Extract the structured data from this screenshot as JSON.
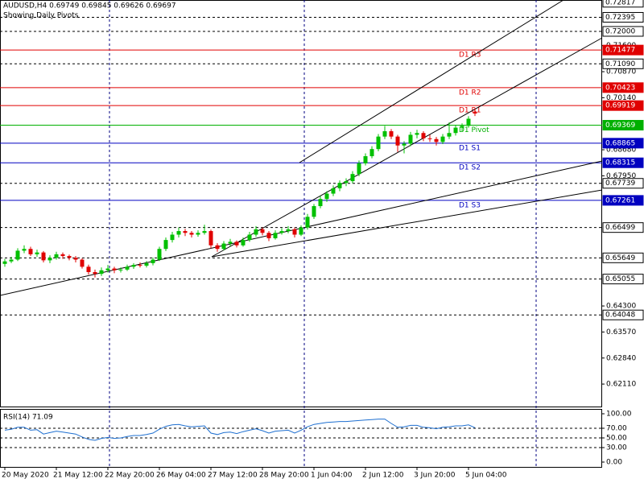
{
  "chart_data": {
    "type": "candlestick",
    "title": "AUDUSD,H4  0.69749 0.69845 0.69626 0.69697",
    "subtitle": "Showing Daily Pivots",
    "up_color": "#00c000",
    "down_color": "#e00000",
    "ylim": [
      0.6148,
      0.7288
    ],
    "yticks": [
      {
        "value": 0.716,
        "label": "0.71600"
      },
      {
        "value": 0.7087,
        "label": "0.70870"
      },
      {
        "value": 0.7014,
        "label": "0.70140"
      },
      {
        "value": 0.6868,
        "label": "0.68680"
      },
      {
        "value": 0.6795,
        "label": "0.67950"
      },
      {
        "value": 0.643,
        "label": "0.64300"
      },
      {
        "value": 0.6357,
        "label": "0.63570"
      },
      {
        "value": 0.6284,
        "label": "0.62840"
      },
      {
        "value": 0.6211,
        "label": "0.62110"
      }
    ],
    "levels": [
      {
        "value": 0.72817,
        "label": "0.72817",
        "color": "#000000",
        "line": "none"
      },
      {
        "value": 0.72395,
        "label": "0.72395",
        "color": "#000000",
        "line": "dashed"
      },
      {
        "value": 0.72,
        "label": "0.72000",
        "color": "#000000",
        "line": "dashed"
      },
      {
        "value": 0.71477,
        "label": "0.71477",
        "color": "#e00000",
        "line": "solid",
        "name": "D1 R3"
      },
      {
        "value": 0.7109,
        "label": "0.71090",
        "color": "#000000",
        "line": "dashed"
      },
      {
        "value": 0.70423,
        "label": "0.70423",
        "color": "#e00000",
        "line": "solid",
        "name": "D1 R2"
      },
      {
        "value": 0.69919,
        "label": "0.69919",
        "color": "#e00000",
        "line": "solid",
        "name": "D1 R1"
      },
      {
        "value": 0.69369,
        "label": "0.69369",
        "color": "#00b000",
        "line": "solid",
        "name": "D1 Pivot"
      },
      {
        "value": 0.68865,
        "label": "0.68865",
        "color": "#0000c0",
        "line": "solid",
        "name": "D1 S1"
      },
      {
        "value": 0.68315,
        "label": "0.68315",
        "color": "#0000c0",
        "line": "solid",
        "name": "D1 S2"
      },
      {
        "value": 0.67739,
        "label": "0.67739",
        "color": "#000000",
        "line": "dashed"
      },
      {
        "value": 0.67261,
        "label": "0.67261",
        "color": "#0000c0",
        "line": "solid",
        "name": "D1 S3"
      },
      {
        "value": 0.66499,
        "label": "0.66499",
        "color": "#000000",
        "line": "dashed"
      },
      {
        "value": 0.65649,
        "label": "0.65649",
        "color": "#000000",
        "line": "dashed"
      },
      {
        "value": 0.65055,
        "label": "0.65055",
        "color": "#000000",
        "line": "dashed"
      },
      {
        "value": 0.64048,
        "label": "0.64048",
        "color": "#000000",
        "line": "dashed"
      }
    ],
    "time_labels": [
      "20 May 2020",
      "21 May 12:00",
      "22 May 20:00",
      "26 May 04:00",
      "27 May 12:00",
      "28 May 20:00",
      "1 Jun 04:00",
      "2 Jun 12:00",
      "3 Jun 20:00",
      "5 Jun 04:00"
    ],
    "open": [
      0.6548,
      0.6555,
      0.656,
      0.6585,
      0.659,
      0.6575,
      0.658,
      0.6558,
      0.6565,
      0.6575,
      0.657,
      0.6565,
      0.656,
      0.654,
      0.6525,
      0.652,
      0.653,
      0.6535,
      0.653,
      0.6532,
      0.654,
      0.6545,
      0.6543,
      0.655,
      0.656,
      0.659,
      0.6615,
      0.663,
      0.664,
      0.6635,
      0.663,
      0.6635,
      0.664,
      0.66,
      0.659,
      0.6605,
      0.661,
      0.66,
      0.6615,
      0.663,
      0.6645,
      0.6635,
      0.662,
      0.6635,
      0.664,
      0.6645,
      0.663,
      0.665,
      0.668,
      0.671,
      0.673,
      0.6745,
      0.676,
      0.6775,
      0.678,
      0.68,
      0.683,
      0.685,
      0.687,
      0.6905,
      0.692,
      0.6905,
      0.688,
      0.6885,
      0.691,
      0.6915,
      0.69,
      0.6898,
      0.689,
      0.6905,
      0.6915,
      0.693,
      0.6935,
      0.69749
    ],
    "high": [
      0.6562,
      0.6568,
      0.6592,
      0.66,
      0.6596,
      0.6588,
      0.6584,
      0.6572,
      0.6582,
      0.658,
      0.6574,
      0.657,
      0.6564,
      0.6546,
      0.6532,
      0.6538,
      0.6545,
      0.654,
      0.6538,
      0.6546,
      0.655,
      0.6552,
      0.6556,
      0.6566,
      0.6596,
      0.6622,
      0.6638,
      0.665,
      0.6646,
      0.664,
      0.6642,
      0.6658,
      0.6644,
      0.6606,
      0.6612,
      0.6618,
      0.6614,
      0.6622,
      0.6638,
      0.6654,
      0.665,
      0.664,
      0.6642,
      0.6648,
      0.6654,
      0.665,
      0.6656,
      0.6688,
      0.6716,
      0.6738,
      0.6752,
      0.6768,
      0.6782,
      0.6788,
      0.6808,
      0.6838,
      0.6858,
      0.6878,
      0.6912,
      0.6935,
      0.6926,
      0.691,
      0.6892,
      0.6918,
      0.6924,
      0.692,
      0.691,
      0.6904,
      0.6912,
      0.6945,
      0.6936,
      0.6942,
      0.6962,
      0.69845
    ],
    "low": [
      0.654,
      0.655,
      0.6556,
      0.6578,
      0.657,
      0.6568,
      0.6552,
      0.655,
      0.656,
      0.6562,
      0.6558,
      0.6552,
      0.6535,
      0.6518,
      0.651,
      0.6514,
      0.6524,
      0.6522,
      0.6524,
      0.6528,
      0.6534,
      0.6538,
      0.6538,
      0.6544,
      0.6556,
      0.6584,
      0.6608,
      0.6622,
      0.6626,
      0.6622,
      0.6624,
      0.663,
      0.6592,
      0.6582,
      0.6586,
      0.6598,
      0.6594,
      0.6596,
      0.661,
      0.6624,
      0.6628,
      0.6612,
      0.6616,
      0.663,
      0.6634,
      0.6622,
      0.6626,
      0.6644,
      0.6674,
      0.6704,
      0.6722,
      0.6738,
      0.6752,
      0.6766,
      0.6774,
      0.6794,
      0.6824,
      0.6844,
      0.6864,
      0.6898,
      0.6898,
      0.6862,
      0.6858,
      0.6878,
      0.69,
      0.6892,
      0.689,
      0.688,
      0.6884,
      0.6898,
      0.6908,
      0.692,
      0.693,
      0.69626
    ],
    "close": [
      0.6555,
      0.656,
      0.6585,
      0.659,
      0.6575,
      0.658,
      0.6558,
      0.6565,
      0.6575,
      0.657,
      0.6565,
      0.656,
      0.654,
      0.6525,
      0.652,
      0.653,
      0.6535,
      0.653,
      0.6532,
      0.654,
      0.6545,
      0.6543,
      0.655,
      0.656,
      0.659,
      0.6615,
      0.663,
      0.664,
      0.6635,
      0.663,
      0.6635,
      0.664,
      0.66,
      0.659,
      0.6605,
      0.661,
      0.66,
      0.6615,
      0.663,
      0.6645,
      0.6635,
      0.662,
      0.6635,
      0.664,
      0.6645,
      0.663,
      0.665,
      0.668,
      0.671,
      0.673,
      0.6745,
      0.676,
      0.6775,
      0.678,
      0.68,
      0.683,
      0.685,
      0.687,
      0.6905,
      0.692,
      0.6905,
      0.688,
      0.6885,
      0.691,
      0.6915,
      0.69,
      0.6898,
      0.689,
      0.6905,
      0.6915,
      0.693,
      0.6935,
      0.6955,
      0.69697
    ],
    "rsi": {
      "label": "RSI(14) 71.09",
      "color": "#1e6fd0",
      "ylim": [
        0,
        100
      ],
      "yticks": [
        {
          "value": 100,
          "label": "100.00"
        },
        {
          "value": 70,
          "label": "70.00"
        },
        {
          "value": 50,
          "label": "50.00"
        },
        {
          "value": 30,
          "label": "30.00"
        },
        {
          "value": 0,
          "label": "0.00"
        }
      ],
      "values": [
        66,
        68,
        72,
        72,
        66,
        67,
        58,
        61,
        64,
        62,
        60,
        58,
        52,
        47,
        45,
        49,
        51,
        49,
        50,
        53,
        55,
        55,
        57,
        60,
        68,
        74,
        77,
        78,
        75,
        73,
        74,
        75,
        60,
        57,
        61,
        62,
        59,
        63,
        66,
        69,
        65,
        60,
        64,
        65,
        66,
        60,
        66,
        73,
        78,
        80,
        82,
        83,
        84,
        84,
        85,
        86,
        87,
        88,
        89,
        89,
        80,
        72,
        73,
        76,
        76,
        72,
        71,
        69,
        72,
        73,
        75,
        75,
        77,
        71.09
      ]
    }
  }
}
